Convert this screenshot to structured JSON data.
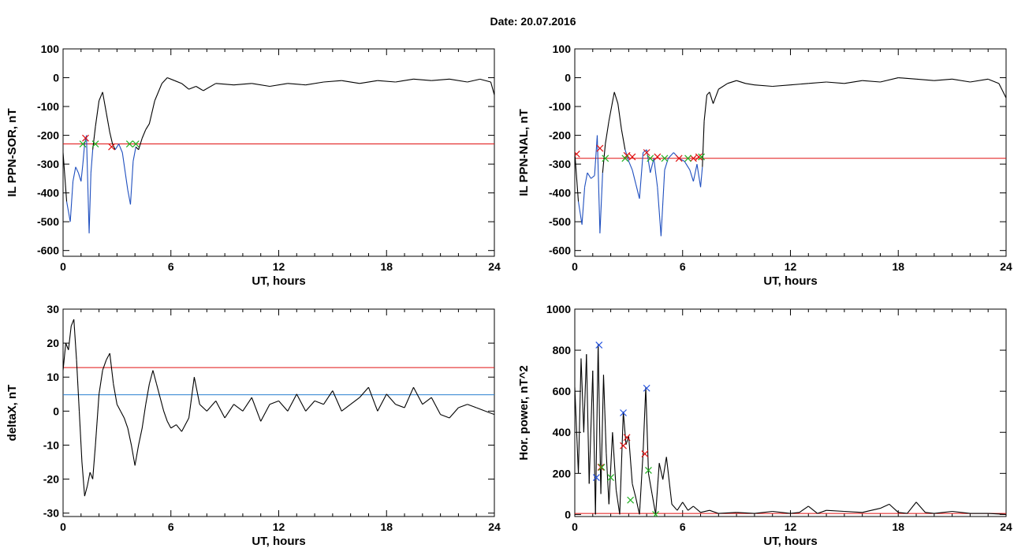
{
  "page": {
    "date_label": "Date:  20.07.2016"
  },
  "colors": {
    "trace": "#000000",
    "segment": "#1f4fbf",
    "threshold_red": "#e01010",
    "threshold_blue": "#2a7fd0",
    "marker_red": "#e01010",
    "marker_green": "#20b020",
    "marker_blue": "#2050e0"
  },
  "chart_data": [
    {
      "type": "line",
      "xlabel": "UT, hours",
      "ylabel": "IL PPN-SOR, nT",
      "xlim": [
        0,
        24
      ],
      "ylim": [
        -620,
        100
      ],
      "xticks": [
        0,
        6,
        12,
        18,
        24
      ],
      "yticks": [
        100,
        0,
        -100,
        -200,
        -300,
        -400,
        -500,
        -600
      ],
      "threshold": -230,
      "series": [
        {
          "values_x": [
            0,
            0.2,
            0.4,
            0.55,
            0.7,
            0.85,
            1.0,
            1.1,
            1.2,
            1.3,
            1.45,
            1.55,
            1.65,
            1.8,
            2.0,
            2.2,
            2.4,
            2.6,
            2.75,
            2.9,
            3.1,
            3.3,
            3.6,
            3.75,
            3.9,
            4.05,
            4.2,
            4.4,
            4.6,
            4.8,
            5.1,
            5.5,
            5.8,
            6.2,
            6.6,
            7.0,
            7.4,
            7.8,
            8.5,
            9.5,
            10.5,
            11.5,
            12.5,
            13.5,
            14.5,
            15.5,
            16.5,
            17.5,
            18.5,
            19.5,
            20.5,
            21.5,
            22.5,
            23.2,
            23.8,
            24
          ],
          "values_y": [
            -260,
            -430,
            -500,
            -360,
            -310,
            -330,
            -360,
            -300,
            -230,
            -200,
            -540,
            -330,
            -250,
            -170,
            -80,
            -50,
            -120,
            -190,
            -230,
            -250,
            -230,
            -260,
            -390,
            -440,
            -290,
            -240,
            -250,
            -210,
            -180,
            -160,
            -80,
            -20,
            0,
            -10,
            -20,
            -40,
            -30,
            -45,
            -20,
            -25,
            -20,
            -30,
            -20,
            -25,
            -15,
            -10,
            -20,
            -10,
            -15,
            -5,
            -10,
            -5,
            -15,
            -5,
            -15,
            -60
          ]
        }
      ],
      "markers_red": [
        [
          1.25,
          -210
        ],
        [
          2.7,
          -240
        ]
      ],
      "markers_green": [
        [
          1.1,
          -230
        ],
        [
          1.8,
          -230
        ],
        [
          3.7,
          -230
        ],
        [
          4.05,
          -230
        ]
      ]
    },
    {
      "type": "line",
      "xlabel": "UT, hours",
      "ylabel": "IL PPN-NAL, nT",
      "xlim": [
        0,
        24
      ],
      "ylim": [
        -620,
        100
      ],
      "xticks": [
        0,
        6,
        12,
        18,
        24
      ],
      "yticks": [
        100,
        0,
        -100,
        -200,
        -300,
        -400,
        -500,
        -600
      ],
      "threshold": -280,
      "series": [
        {
          "values_x": [
            0,
            0.2,
            0.4,
            0.55,
            0.7,
            0.9,
            1.1,
            1.25,
            1.4,
            1.55,
            1.7,
            1.9,
            2.2,
            2.4,
            2.6,
            2.8,
            3.0,
            3.2,
            3.4,
            3.6,
            3.8,
            4.0,
            4.2,
            4.4,
            4.6,
            4.8,
            5.0,
            5.2,
            5.5,
            5.8,
            6.1,
            6.4,
            6.6,
            6.8,
            7.0,
            7.1,
            7.2,
            7.35,
            7.5,
            7.7,
            8.0,
            8.5,
            9.0,
            9.5,
            10.0,
            11.0,
            12.0,
            13.0,
            14.0,
            15.0,
            16.0,
            17.0,
            18.0,
            19.0,
            20.0,
            21.0,
            22.0,
            23.0,
            23.6,
            24
          ],
          "values_y": [
            -260,
            -430,
            -510,
            -380,
            -330,
            -350,
            -340,
            -200,
            -540,
            -330,
            -230,
            -150,
            -50,
            -90,
            -180,
            -250,
            -290,
            -320,
            -370,
            -420,
            -260,
            -250,
            -330,
            -280,
            -380,
            -550,
            -320,
            -280,
            -260,
            -280,
            -290,
            -320,
            -360,
            -300,
            -380,
            -310,
            -150,
            -60,
            -50,
            -90,
            -40,
            -20,
            -10,
            -20,
            -25,
            -30,
            -25,
            -20,
            -15,
            -20,
            -10,
            -15,
            0,
            -5,
            -10,
            -5,
            -15,
            -5,
            -20,
            -70
          ]
        }
      ],
      "markers_red": [
        [
          0.1,
          -265
        ],
        [
          1.4,
          -245
        ],
        [
          2.9,
          -270
        ],
        [
          3.2,
          -275
        ],
        [
          4.0,
          -260
        ],
        [
          4.6,
          -275
        ],
        [
          5.8,
          -280
        ],
        [
          6.6,
          -280
        ],
        [
          6.9,
          -275
        ]
      ],
      "markers_green": [
        [
          1.7,
          -280
        ],
        [
          2.8,
          -280
        ],
        [
          4.2,
          -280
        ],
        [
          5.0,
          -280
        ],
        [
          6.3,
          -280
        ],
        [
          7.05,
          -275
        ]
      ]
    },
    {
      "type": "line",
      "xlabel": "UT, hours",
      "ylabel": "deltaX, nT",
      "xlim": [
        0,
        24
      ],
      "ylim": [
        -31,
        30
      ],
      "xticks": [
        0,
        6,
        12,
        18,
        24
      ],
      "yticks": [
        30,
        20,
        10,
        0,
        -10,
        -20,
        -30
      ],
      "threshold_red": 12.8,
      "threshold_blue": 4.8,
      "series": [
        {
          "values_x": [
            0,
            0.15,
            0.3,
            0.45,
            0.6,
            0.75,
            0.9,
            1.05,
            1.2,
            1.35,
            1.5,
            1.65,
            1.8,
            2.0,
            2.2,
            2.4,
            2.6,
            2.8,
            3.0,
            3.2,
            3.4,
            3.6,
            3.8,
            4.0,
            4.2,
            4.4,
            4.6,
            4.8,
            5.0,
            5.2,
            5.4,
            5.6,
            5.8,
            6.0,
            6.3,
            6.6,
            7.0,
            7.3,
            7.6,
            8.0,
            8.5,
            9.0,
            9.5,
            10.0,
            10.5,
            11.0,
            11.5,
            12.0,
            12.5,
            13.0,
            13.5,
            14.0,
            14.5,
            15.0,
            15.5,
            16.0,
            16.5,
            17.0,
            17.5,
            18.0,
            18.5,
            19.0,
            19.5,
            20.0,
            20.5,
            21.0,
            21.5,
            22.0,
            22.5,
            23.0,
            23.5,
            24.0
          ],
          "values_y": [
            12,
            20,
            18,
            25,
            27,
            15,
            0,
            -15,
            -25,
            -22,
            -18,
            -20,
            -10,
            5,
            12,
            15,
            17,
            8,
            2,
            0,
            -2,
            -5,
            -10,
            -16,
            -10,
            -5,
            2,
            8,
            12,
            8,
            4,
            0,
            -3,
            -5,
            -4,
            -6,
            -2,
            10,
            2,
            0,
            3,
            -2,
            2,
            0,
            4,
            -3,
            2,
            3,
            0,
            5,
            0,
            3,
            2,
            6,
            0,
            2,
            4,
            7,
            0,
            5,
            2,
            1,
            7,
            2,
            4,
            -1,
            -2,
            1,
            2,
            1,
            0,
            -1
          ]
        }
      ]
    },
    {
      "type": "line",
      "xlabel": "UT, hours",
      "ylabel": "Hor. power, nT^2",
      "xlim": [
        0,
        24
      ],
      "ylim": [
        -10,
        1000
      ],
      "xticks": [
        0,
        6,
        12,
        18,
        24
      ],
      "yticks": [
        1000,
        800,
        600,
        400,
        200,
        0
      ],
      "threshold": 5,
      "series": [
        {
          "values_x": [
            0,
            0.2,
            0.35,
            0.5,
            0.65,
            0.8,
            1.0,
            1.15,
            1.3,
            1.45,
            1.6,
            1.75,
            1.9,
            2.1,
            2.3,
            2.5,
            2.7,
            2.85,
            3.0,
            3.2,
            3.4,
            3.6,
            3.8,
            3.95,
            4.1,
            4.3,
            4.5,
            4.7,
            4.9,
            5.1,
            5.4,
            5.7,
            6.0,
            6.3,
            6.6,
            7.0,
            7.5,
            8.0,
            9.0,
            10.0,
            11.0,
            12.0,
            12.5,
            13.0,
            13.5,
            14.0,
            15.0,
            16.0,
            17.0,
            17.5,
            18.0,
            18.5,
            19.0,
            19.5,
            20.0,
            21.0,
            22.0,
            23.0,
            24.0
          ],
          "values_y": [
            620,
            200,
            760,
            400,
            780,
            150,
            700,
            0,
            830,
            100,
            680,
            300,
            50,
            400,
            120,
            0,
            500,
            340,
            380,
            150,
            80,
            0,
            300,
            620,
            200,
            100,
            0,
            250,
            170,
            280,
            50,
            20,
            60,
            20,
            40,
            10,
            20,
            5,
            10,
            5,
            15,
            5,
            10,
            40,
            5,
            20,
            15,
            10,
            30,
            50,
            10,
            5,
            60,
            10,
            5,
            15,
            5,
            5,
            0
          ]
        }
      ],
      "markers_blue": [
        [
          1.2,
          180
        ],
        [
          1.35,
          825
        ],
        [
          2.7,
          495
        ],
        [
          4.0,
          615
        ]
      ],
      "markers_red": [
        [
          1.45,
          230
        ],
        [
          2.7,
          335
        ],
        [
          2.9,
          375
        ],
        [
          3.9,
          295
        ]
      ],
      "markers_green": [
        [
          1.5,
          230
        ],
        [
          2.0,
          180
        ],
        [
          3.1,
          70
        ],
        [
          4.1,
          215
        ],
        [
          4.5,
          0
        ]
      ]
    }
  ]
}
